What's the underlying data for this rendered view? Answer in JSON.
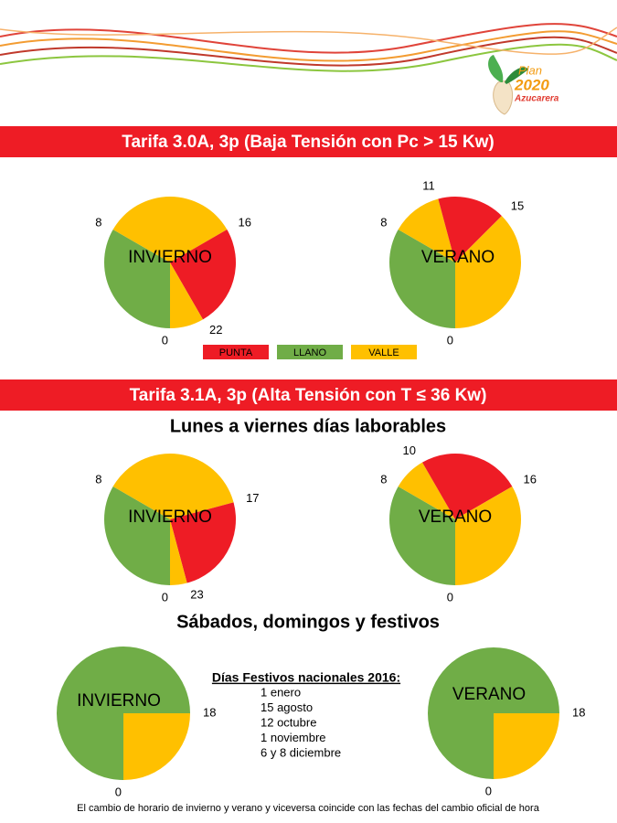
{
  "header": {
    "logo": {
      "word": "Plan",
      "year": "2020",
      "brand": "Azucarera"
    }
  },
  "clock_range": [
    0,
    24
  ],
  "tariff_30a": {
    "title": "Tarifa 3.0A, 3p (Baja Tensión con Pc > 15 Kw)",
    "pies": [
      {
        "name": "INVIERNO",
        "boundaries": [
          0,
          8,
          16,
          22
        ],
        "colors": [
          "#70ad47",
          "#ffc000",
          "#ee1c25",
          "#ffc000"
        ]
      },
      {
        "name": "VERANO",
        "boundaries": [
          0,
          8,
          11,
          15
        ],
        "colors": [
          "#70ad47",
          "#ffc000",
          "#ee1c25",
          "#ffc000"
        ]
      }
    ],
    "legend": [
      {
        "label": "PUNTA",
        "color": "#ee1c25"
      },
      {
        "label": "LLANO",
        "color": "#70ad47"
      },
      {
        "label": "VALLE",
        "color": "#ffc000"
      }
    ]
  },
  "tariff_31a": {
    "title": "Tarifa 3.1A, 3p (Alta Tensión con T ≤ 36 Kw)",
    "groups": [
      {
        "heading": "Lunes a viernes días laborables",
        "pies": [
          {
            "name": "INVIERNO",
            "boundaries": [
              0,
              8,
              17,
              23
            ],
            "colors": [
              "#70ad47",
              "#ffc000",
              "#ee1c25",
              "#ffc000"
            ]
          },
          {
            "name": "VERANO",
            "boundaries": [
              0,
              8,
              10,
              16
            ],
            "colors": [
              "#70ad47",
              "#ffc000",
              "#ee1c25",
              "#ffc000"
            ]
          }
        ]
      },
      {
        "heading": "Sábados, domingos y festivos",
        "pies": [
          {
            "name": "INVIERNO",
            "boundaries": [
              0,
              18
            ],
            "colors": [
              "#70ad47",
              "#ffc000"
            ]
          },
          {
            "name": "VERANO",
            "boundaries": [
              0,
              18
            ],
            "colors": [
              "#70ad47",
              "#ffc000"
            ]
          }
        ],
        "holidays": {
          "title": "Días Festivos nacionales 2016:",
          "items": [
            "1 enero",
            "15 agosto",
            "12 octubre",
            "1 noviembre",
            "6 y 8 diciembre"
          ]
        }
      }
    ]
  },
  "footer": "El cambio de horario de invierno y verano y viceversa coincide con las fechas del cambio oficial de hora"
}
